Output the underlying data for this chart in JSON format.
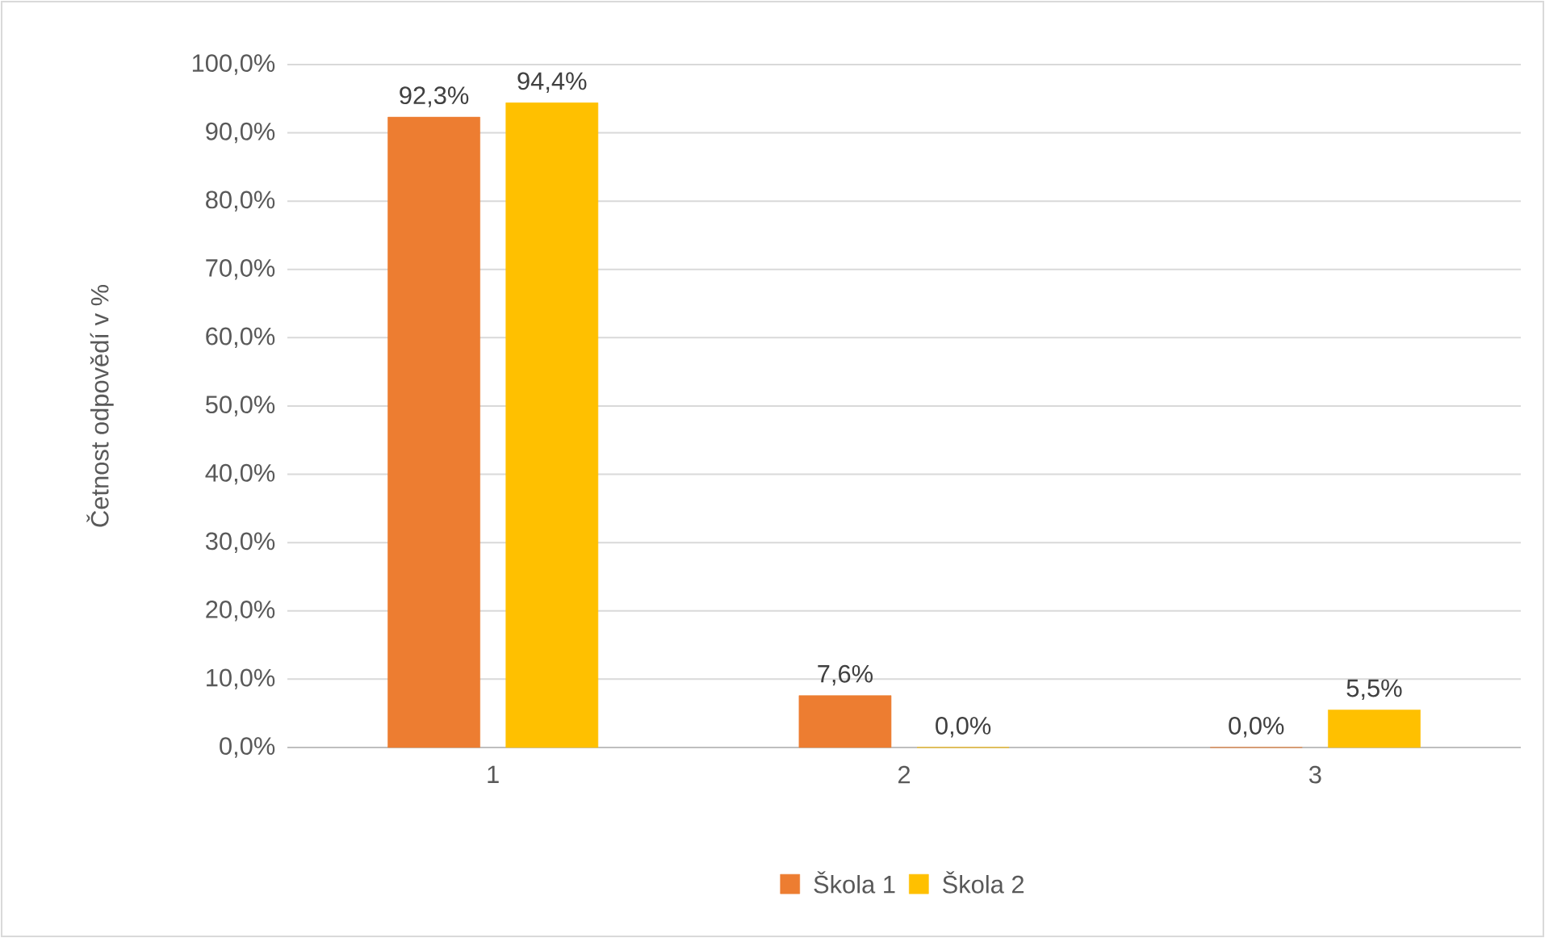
{
  "chart_data": {
    "type": "bar",
    "ylabel": "Četnost odpovědí v %",
    "categories": [
      "1",
      "2",
      "3"
    ],
    "series": [
      {
        "name": "Škola 1",
        "color": "#ed7d31",
        "values": [
          92.3,
          7.6,
          0.0
        ],
        "value_labels": [
          "92,3%",
          "7,6%",
          "0,0%"
        ]
      },
      {
        "name": "Škola 2",
        "color": "#ffc000",
        "values": [
          94.4,
          0.0,
          5.5
        ],
        "value_labels": [
          "94,4%",
          "0,0%",
          "5,5%"
        ]
      }
    ],
    "ylim": [
      0,
      100
    ],
    "yticks": [
      {
        "value": 0,
        "label": "0,0%"
      },
      {
        "value": 10,
        "label": "10,0%"
      },
      {
        "value": 20,
        "label": "20,0%"
      },
      {
        "value": 30,
        "label": "30,0%"
      },
      {
        "value": 40,
        "label": "40,0%"
      },
      {
        "value": 50,
        "label": "50,0%"
      },
      {
        "value": 60,
        "label": "60,0%"
      },
      {
        "value": 70,
        "label": "70,0%"
      },
      {
        "value": 80,
        "label": "80,0%"
      },
      {
        "value": 90,
        "label": "90,0%"
      },
      {
        "value": 100,
        "label": "100,0%"
      }
    ],
    "grid": "y",
    "legend": "bottom"
  }
}
